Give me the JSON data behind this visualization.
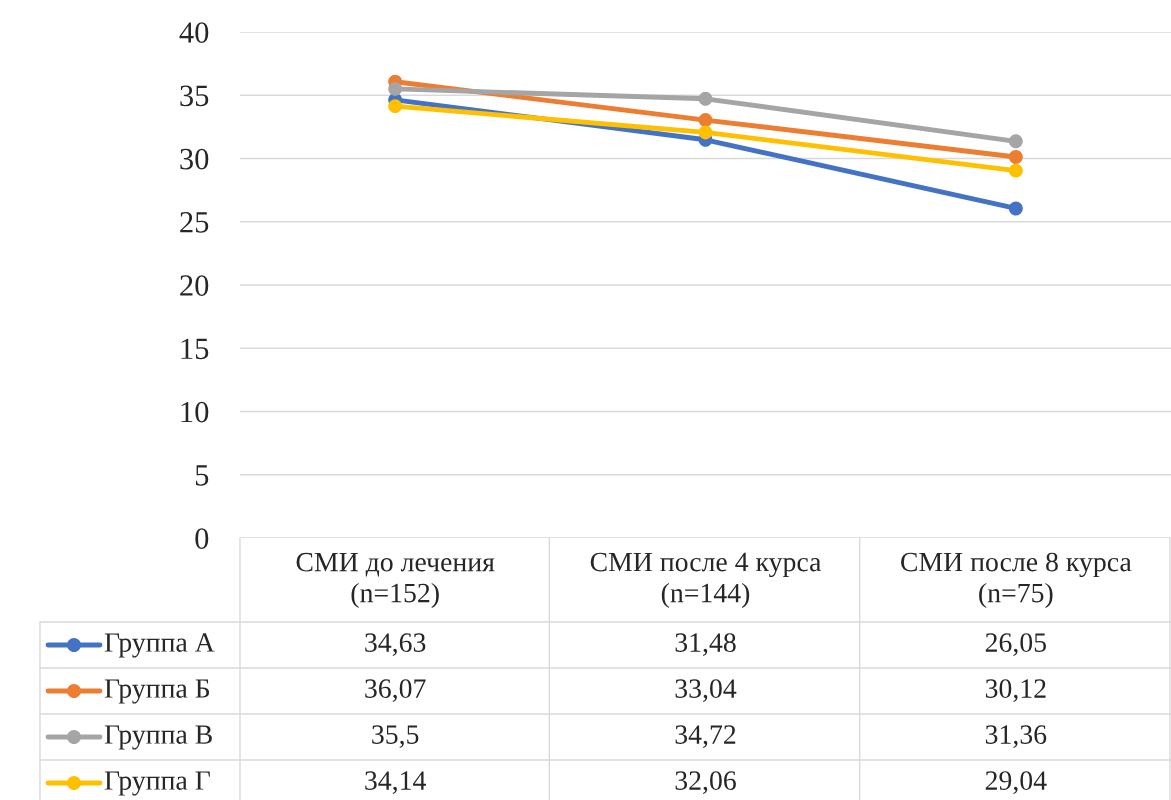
{
  "chart_data": {
    "type": "line",
    "categories": [
      "СМИ до лечения\n(n=152)",
      "СМИ после 4 курса\n(n=144)",
      "СМИ после 8 курса\n(n=75)"
    ],
    "series": [
      {
        "name": "Группа А",
        "color": "#4472c4",
        "values": [
          34.63,
          31.48,
          26.05
        ],
        "value_labels": [
          "34,63",
          "31,48",
          "26,05"
        ]
      },
      {
        "name": "Группа Б",
        "color": "#ed7d31",
        "values": [
          36.07,
          33.04,
          30.12
        ],
        "value_labels": [
          "36,07",
          "33,04",
          "30,12"
        ]
      },
      {
        "name": "Группа В",
        "color": "#a5a5a5",
        "values": [
          35.5,
          34.72,
          31.36
        ],
        "value_labels": [
          "35,5",
          "34,72",
          "31,36"
        ]
      },
      {
        "name": "Группа Г",
        "color": "#ffc000",
        "values": [
          34.14,
          32.06,
          29.04
        ],
        "value_labels": [
          "34,14",
          "32,06",
          "29,04"
        ]
      }
    ],
    "ylim": [
      0,
      40
    ],
    "yticks": [
      0,
      5,
      10,
      15,
      20,
      25,
      30,
      35,
      40
    ],
    "grid": "y",
    "marker": "circle",
    "line_style": "solid",
    "legend": "bottom left"
  }
}
